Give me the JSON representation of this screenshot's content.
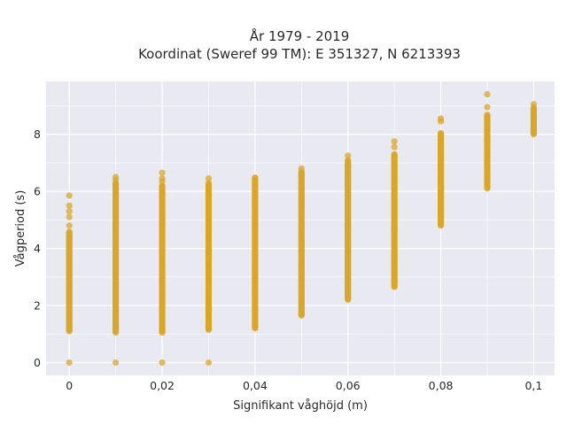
{
  "chart_data": {
    "type": "scatter",
    "title_line1": "År 1979 - 2019",
    "title_line2": "Koordinat (Sweref 99 TM): E 351327, N 6213393",
    "xlabel": "Signifikant våghöjd (m)",
    "ylabel": "Vågperiod (s)",
    "xlim": [
      -0.005,
      0.1045
    ],
    "ylim": [
      -0.45,
      9.85
    ],
    "x_ticks": [
      0,
      0.02,
      0.04,
      0.06,
      0.08,
      0.1
    ],
    "x_tick_labels": [
      "0",
      "0,02",
      "0,04",
      "0,06",
      "0,08",
      "0,1"
    ],
    "y_ticks": [
      0,
      2,
      4,
      6,
      8
    ],
    "y_tick_labels": [
      "0",
      "2",
      "4",
      "6",
      "8"
    ],
    "grid": true,
    "background_color": "#e9e9f1",
    "grid_color": "#ffffff",
    "marker_color": "#d9a628",
    "columns": [
      {
        "x": 0.0,
        "y_min": 1.1,
        "y_max": 4.6,
        "outliers": [
          0.0,
          4.8,
          5.1,
          5.3,
          5.5,
          5.85
        ]
      },
      {
        "x": 0.01,
        "y_min": 1.1,
        "y_max": 6.3,
        "outliers": [
          0.0,
          1.05,
          6.4,
          6.5
        ]
      },
      {
        "x": 0.02,
        "y_min": 1.1,
        "y_max": 6.2,
        "outliers": [
          0.0,
          1.05,
          6.35,
          6.45,
          6.65
        ]
      },
      {
        "x": 0.03,
        "y_min": 1.15,
        "y_max": 6.3,
        "outliers": [
          0.0,
          6.45
        ]
      },
      {
        "x": 0.04,
        "y_min": 1.2,
        "y_max": 6.5,
        "outliers": []
      },
      {
        "x": 0.05,
        "y_min": 1.65,
        "y_max": 6.7,
        "outliers": [
          6.8
        ]
      },
      {
        "x": 0.06,
        "y_min": 2.2,
        "y_max": 7.1,
        "outliers": [
          7.25
        ]
      },
      {
        "x": 0.07,
        "y_min": 2.65,
        "y_max": 7.3,
        "outliers": [
          3.7,
          7.55,
          7.75
        ]
      },
      {
        "x": 0.08,
        "y_min": 4.8,
        "y_max": 8.05,
        "outliers": [
          8.45,
          8.55
        ]
      },
      {
        "x": 0.09,
        "y_min": 6.1,
        "y_max": 8.7,
        "outliers": [
          8.95,
          9.4
        ]
      },
      {
        "x": 0.1,
        "y_min": 8.0,
        "y_max": 8.95,
        "outliers": [
          9.05
        ]
      }
    ]
  }
}
